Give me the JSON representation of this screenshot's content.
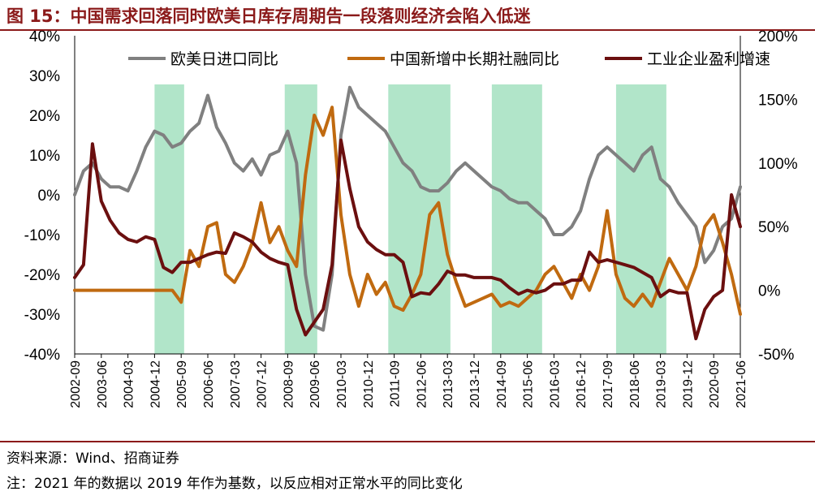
{
  "title": "图 15：中国需求回落同时欧美日库存周期告一段落则经济会陷入低迷",
  "source": "资料来源：Wind、招商证券",
  "note": "注：2021 年的数据以 2019 年作为基数，以反应相对正常水平的同比变化",
  "chart_data": {
    "type": "line",
    "x_start": "2002-09",
    "x_end": "2021-06",
    "x_ticks": [
      "2002-09",
      "2003-06",
      "2004-03",
      "2004-12",
      "2005-09",
      "2006-06",
      "2007-03",
      "2007-12",
      "2008-09",
      "2009-06",
      "2010-03",
      "2010-12",
      "2011-09",
      "2012-06",
      "2013-03",
      "2013-12",
      "2014-09",
      "2015-06",
      "2016-03",
      "2016-12",
      "2017-09",
      "2018-06",
      "2019-03",
      "2019-12",
      "2020-09",
      "2021-06"
    ],
    "left_axis": {
      "min": -40,
      "max": 40,
      "step": 10,
      "tick_labels": [
        "40%",
        "30%",
        "20%",
        "10%",
        "0%",
        "-10%",
        "-20%",
        "-30%",
        "-40%"
      ]
    },
    "right_axis": {
      "min": -50,
      "max": 200,
      "step": 50,
      "tick_labels": [
        "200%",
        "150%",
        "100%",
        "50%",
        "0%",
        "-50%"
      ]
    },
    "legend_position": "top",
    "shaded_periods": [
      [
        "2004-12",
        "2005-10"
      ],
      [
        "2008-08",
        "2009-07"
      ],
      [
        "2011-07",
        "2013-04"
      ],
      [
        "2014-06",
        "2015-11"
      ],
      [
        "2017-12",
        "2019-05"
      ]
    ],
    "series": [
      {
        "name": "欧美日进口同比",
        "axis": "left",
        "color": "#808080",
        "points": [
          [
            "2002-09",
            0
          ],
          [
            "2002-12",
            6
          ],
          [
            "2003-03",
            8
          ],
          [
            "2003-06",
            4
          ],
          [
            "2003-09",
            2
          ],
          [
            "2003-12",
            2
          ],
          [
            "2004-03",
            1
          ],
          [
            "2004-06",
            6
          ],
          [
            "2004-09",
            12
          ],
          [
            "2004-12",
            16
          ],
          [
            "2005-03",
            15
          ],
          [
            "2005-06",
            12
          ],
          [
            "2005-09",
            13
          ],
          [
            "2005-12",
            16
          ],
          [
            "2006-03",
            18
          ],
          [
            "2006-06",
            25
          ],
          [
            "2006-09",
            17
          ],
          [
            "2006-12",
            13
          ],
          [
            "2007-03",
            8
          ],
          [
            "2007-06",
            6
          ],
          [
            "2007-09",
            9
          ],
          [
            "2007-12",
            5
          ],
          [
            "2008-03",
            10
          ],
          [
            "2008-06",
            11
          ],
          [
            "2008-09",
            16
          ],
          [
            "2008-12",
            8
          ],
          [
            "2009-03",
            -20
          ],
          [
            "2009-06",
            -33
          ],
          [
            "2009-09",
            -34
          ],
          [
            "2009-12",
            -20
          ],
          [
            "2010-03",
            15
          ],
          [
            "2010-06",
            27
          ],
          [
            "2010-09",
            22
          ],
          [
            "2010-12",
            20
          ],
          [
            "2011-03",
            18
          ],
          [
            "2011-06",
            16
          ],
          [
            "2011-09",
            12
          ],
          [
            "2011-12",
            8
          ],
          [
            "2012-03",
            6
          ],
          [
            "2012-06",
            2
          ],
          [
            "2012-09",
            1
          ],
          [
            "2012-12",
            1
          ],
          [
            "2013-03",
            3
          ],
          [
            "2013-06",
            6
          ],
          [
            "2013-09",
            8
          ],
          [
            "2013-12",
            6
          ],
          [
            "2014-03",
            4
          ],
          [
            "2014-06",
            2
          ],
          [
            "2014-09",
            1
          ],
          [
            "2014-12",
            -1
          ],
          [
            "2015-03",
            -2
          ],
          [
            "2015-06",
            -2
          ],
          [
            "2015-09",
            -4
          ],
          [
            "2015-12",
            -6
          ],
          [
            "2016-03",
            -10
          ],
          [
            "2016-06",
            -10
          ],
          [
            "2016-09",
            -8
          ],
          [
            "2016-12",
            -4
          ],
          [
            "2017-03",
            4
          ],
          [
            "2017-06",
            10
          ],
          [
            "2017-09",
            12
          ],
          [
            "2017-12",
            10
          ],
          [
            "2018-03",
            8
          ],
          [
            "2018-06",
            6
          ],
          [
            "2018-09",
            10
          ],
          [
            "2018-12",
            12
          ],
          [
            "2019-03",
            4
          ],
          [
            "2019-06",
            2
          ],
          [
            "2019-09",
            -2
          ],
          [
            "2019-12",
            -5
          ],
          [
            "2020-03",
            -8
          ],
          [
            "2020-06",
            -17
          ],
          [
            "2020-09",
            -14
          ],
          [
            "2020-12",
            -8
          ],
          [
            "2021-03",
            -6
          ],
          [
            "2021-06",
            2
          ]
        ]
      },
      {
        "name": "中国新增中长期社融同比",
        "axis": "left",
        "color": "#C06A10",
        "points": [
          [
            "2002-09",
            -24
          ],
          [
            "2003-06",
            -24
          ],
          [
            "2004-06",
            -24
          ],
          [
            "2005-06",
            -24
          ],
          [
            "2005-09",
            -27
          ],
          [
            "2005-12",
            -14
          ],
          [
            "2006-03",
            -18
          ],
          [
            "2006-06",
            -8
          ],
          [
            "2006-09",
            -7
          ],
          [
            "2006-12",
            -20
          ],
          [
            "2007-03",
            -22
          ],
          [
            "2007-06",
            -18
          ],
          [
            "2007-09",
            -12
          ],
          [
            "2007-12",
            -2
          ],
          [
            "2008-03",
            -12
          ],
          [
            "2008-06",
            -8
          ],
          [
            "2008-09",
            -14
          ],
          [
            "2008-12",
            -18
          ],
          [
            "2009-03",
            5
          ],
          [
            "2009-06",
            20
          ],
          [
            "2009-09",
            15
          ],
          [
            "2009-12",
            22
          ],
          [
            "2010-03",
            -5
          ],
          [
            "2010-06",
            -20
          ],
          [
            "2010-09",
            -28
          ],
          [
            "2010-12",
            -20
          ],
          [
            "2011-03",
            -25
          ],
          [
            "2011-06",
            -22
          ],
          [
            "2011-09",
            -28
          ],
          [
            "2011-12",
            -29
          ],
          [
            "2012-03",
            -25
          ],
          [
            "2012-06",
            -20
          ],
          [
            "2012-09",
            -5
          ],
          [
            "2012-12",
            -2
          ],
          [
            "2013-03",
            -15
          ],
          [
            "2013-06",
            -22
          ],
          [
            "2013-09",
            -28
          ],
          [
            "2013-12",
            -27
          ],
          [
            "2014-03",
            -26
          ],
          [
            "2014-06",
            -25
          ],
          [
            "2014-09",
            -28
          ],
          [
            "2014-12",
            -27
          ],
          [
            "2015-03",
            -28
          ],
          [
            "2015-06",
            -26
          ],
          [
            "2015-09",
            -24
          ],
          [
            "2015-12",
            -20
          ],
          [
            "2016-03",
            -18
          ],
          [
            "2016-06",
            -22
          ],
          [
            "2016-09",
            -26
          ],
          [
            "2016-12",
            -20
          ],
          [
            "2017-03",
            -24
          ],
          [
            "2017-06",
            -18
          ],
          [
            "2017-09",
            -4
          ],
          [
            "2017-12",
            -20
          ],
          [
            "2018-03",
            -26
          ],
          [
            "2018-06",
            -28
          ],
          [
            "2018-09",
            -25
          ],
          [
            "2018-12",
            -28
          ],
          [
            "2019-03",
            -22
          ],
          [
            "2019-06",
            -16
          ],
          [
            "2019-09",
            -20
          ],
          [
            "2019-12",
            -24
          ],
          [
            "2020-03",
            -18
          ],
          [
            "2020-06",
            -8
          ],
          [
            "2020-09",
            -5
          ],
          [
            "2020-12",
            -12
          ],
          [
            "2021-03",
            -20
          ],
          [
            "2021-06",
            -30
          ]
        ]
      },
      {
        "name": "工业企业盈利增速",
        "axis": "right",
        "color": "#6B0F0F",
        "points": [
          [
            "2002-09",
            10
          ],
          [
            "2002-12",
            20
          ],
          [
            "2003-03",
            115
          ],
          [
            "2003-06",
            70
          ],
          [
            "2003-09",
            55
          ],
          [
            "2003-12",
            45
          ],
          [
            "2004-03",
            40
          ],
          [
            "2004-06",
            38
          ],
          [
            "2004-09",
            42
          ],
          [
            "2004-12",
            40
          ],
          [
            "2005-03",
            18
          ],
          [
            "2005-06",
            14
          ],
          [
            "2005-09",
            22
          ],
          [
            "2005-12",
            22
          ],
          [
            "2006-03",
            25
          ],
          [
            "2006-06",
            28
          ],
          [
            "2006-09",
            30
          ],
          [
            "2006-12",
            29
          ],
          [
            "2007-03",
            45
          ],
          [
            "2007-06",
            42
          ],
          [
            "2007-09",
            38
          ],
          [
            "2007-12",
            30
          ],
          [
            "2008-03",
            25
          ],
          [
            "2008-06",
            22
          ],
          [
            "2008-09",
            20
          ],
          [
            "2008-12",
            -15
          ],
          [
            "2009-03",
            -35
          ],
          [
            "2009-06",
            -25
          ],
          [
            "2009-09",
            -15
          ],
          [
            "2009-12",
            20
          ],
          [
            "2010-03",
            118
          ],
          [
            "2010-06",
            80
          ],
          [
            "2010-09",
            50
          ],
          [
            "2010-12",
            38
          ],
          [
            "2011-03",
            32
          ],
          [
            "2011-06",
            28
          ],
          [
            "2011-09",
            28
          ],
          [
            "2011-12",
            22
          ],
          [
            "2012-03",
            -5
          ],
          [
            "2012-06",
            -2
          ],
          [
            "2012-09",
            -3
          ],
          [
            "2012-12",
            5
          ],
          [
            "2013-03",
            15
          ],
          [
            "2013-06",
            12
          ],
          [
            "2013-09",
            12
          ],
          [
            "2013-12",
            10
          ],
          [
            "2014-03",
            10
          ],
          [
            "2014-06",
            10
          ],
          [
            "2014-09",
            8
          ],
          [
            "2014-12",
            2
          ],
          [
            "2015-03",
            -3
          ],
          [
            "2015-06",
            0
          ],
          [
            "2015-09",
            -2
          ],
          [
            "2015-12",
            0
          ],
          [
            "2016-03",
            5
          ],
          [
            "2016-06",
            5
          ],
          [
            "2016-09",
            8
          ],
          [
            "2016-12",
            8
          ],
          [
            "2017-03",
            30
          ],
          [
            "2017-06",
            22
          ],
          [
            "2017-09",
            24
          ],
          [
            "2017-12",
            22
          ],
          [
            "2018-03",
            20
          ],
          [
            "2018-06",
            18
          ],
          [
            "2018-09",
            14
          ],
          [
            "2018-12",
            10
          ],
          [
            "2019-03",
            -5
          ],
          [
            "2019-06",
            0
          ],
          [
            "2019-09",
            -2
          ],
          [
            "2019-12",
            -2
          ],
          [
            "2020-03",
            -38
          ],
          [
            "2020-06",
            -15
          ],
          [
            "2020-09",
            -5
          ],
          [
            "2020-12",
            0
          ],
          [
            "2021-03",
            75
          ],
          [
            "2021-06",
            50
          ]
        ]
      }
    ]
  }
}
